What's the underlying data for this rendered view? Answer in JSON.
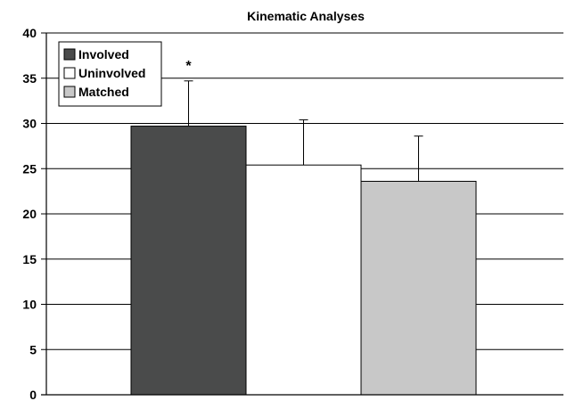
{
  "chart_data": {
    "type": "bar",
    "title": "Kinematic Analyses",
    "xlabel": "",
    "ylabel": "",
    "ylim": [
      0,
      40
    ],
    "yticks": [
      0,
      5,
      10,
      15,
      20,
      25,
      30,
      35,
      40
    ],
    "grid": true,
    "legend_position": "top-left",
    "series": [
      {
        "name": "Involved",
        "value": 29.7,
        "error": 5.0,
        "color": "#4a4b4b",
        "annotation": "*"
      },
      {
        "name": "Uninvolved",
        "value": 25.4,
        "error": 5.0,
        "color": "#ffffff",
        "annotation": ""
      },
      {
        "name": "Matched",
        "value": 23.6,
        "error": 5.0,
        "color": "#c8c8c8",
        "annotation": ""
      }
    ]
  }
}
